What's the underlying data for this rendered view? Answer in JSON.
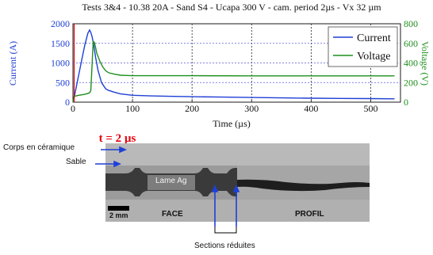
{
  "chart_data": {
    "type": "line",
    "title": "Tests 3&4 - 10.38 20A - Sand S4 - Ucapa 300 V - cam. period 2µs - Vx 32 µm",
    "xlabel": "Time (µs)",
    "ylabel": "Current (A)",
    "ylabel_right": "Voltage (V)",
    "xlim": [
      0,
      550
    ],
    "ylim": [
      0,
      2000
    ],
    "ylim_right": [
      0,
      800
    ],
    "x_ticks": [
      "0",
      "100",
      "200",
      "300",
      "400",
      "500"
    ],
    "y_ticks": [
      "0",
      "500",
      "1000",
      "1500",
      "2000"
    ],
    "y_ticks_right": [
      "0",
      "200",
      "400",
      "600",
      "800"
    ],
    "grid": "vertical dashed",
    "legend_position": "top-right",
    "marker": {
      "x": 2,
      "label": "t = 2 µs",
      "color": "#e8000b"
    },
    "series": [
      {
        "name": "Current",
        "axis": "left",
        "color": "#1f3fd6",
        "x": [
          0,
          2,
          5,
          10,
          15,
          20,
          25,
          28,
          30,
          32,
          35,
          38,
          42,
          48,
          55,
          60,
          70,
          80,
          100,
          130,
          160,
          200,
          250,
          300,
          350,
          400,
          450,
          500,
          540
        ],
        "y": [
          0,
          120,
          350,
          720,
          1100,
          1460,
          1760,
          1840,
          1780,
          1680,
          1450,
          1150,
          820,
          500,
          340,
          300,
          250,
          210,
          175,
          160,
          150,
          140,
          130,
          120,
          110,
          100,
          95,
          90,
          85
        ]
      },
      {
        "name": "Voltage",
        "axis": "right",
        "color": "#1d8f1d",
        "x": [
          0,
          2,
          10,
          20,
          25,
          28,
          30,
          32,
          34,
          36,
          38,
          40,
          45,
          50,
          55,
          60,
          70,
          80,
          90,
          100,
          150,
          200,
          300,
          400,
          500,
          540
        ],
        "y": [
          0,
          60,
          70,
          80,
          90,
          95,
          120,
          360,
          620,
          610,
          560,
          500,
          420,
          360,
          320,
          300,
          285,
          275,
          272,
          270,
          270,
          270,
          268,
          268,
          268,
          268
        ]
      }
    ]
  },
  "photo": {
    "labels": {
      "ceramic": "Corps en céramique",
      "sand": "Sable",
      "blade": "Lame Ag",
      "face": "FACE",
      "profile": "PROFIL",
      "scale": "2 mm",
      "reduced": "Sections réduites"
    }
  }
}
